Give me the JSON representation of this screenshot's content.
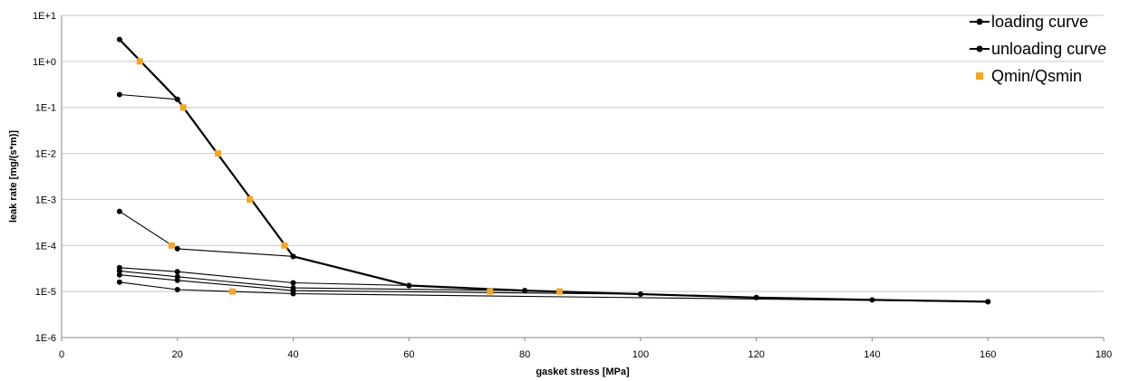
{
  "chart_data": {
    "type": "scatter",
    "title": "",
    "xlabel": "gasket stress [MPa]",
    "ylabel": "leak rate [mg/(s*m)]",
    "xlim": [
      0,
      180
    ],
    "xticks": [
      0,
      20,
      40,
      60,
      80,
      100,
      120,
      140,
      160,
      180
    ],
    "ylim": [
      1e-06,
      10
    ],
    "yscale": "log",
    "ytick_values": [
      1e-06,
      1e-05,
      0.0001,
      0.001,
      0.01,
      0.1,
      1,
      10
    ],
    "ytick_labels": [
      "1E-6",
      "1E-5",
      "1E-4",
      "1E-3",
      "1E-2",
      "1E-1",
      "1E+0",
      "1E+1"
    ],
    "grid": "horizontal",
    "legend_position": "top-right",
    "colors": {
      "line": "#000000",
      "marker_q": "#f5a623",
      "grid": "#c8c8c8",
      "axis": "#888888"
    },
    "series": [
      {
        "name": "loading curve",
        "role": "loading",
        "marker": "circle",
        "points": [
          [
            10,
            3.0
          ],
          [
            20,
            0.15
          ],
          [
            40,
            5.8e-05
          ],
          [
            60,
            1.35e-05
          ],
          [
            80,
            1.05e-05
          ],
          [
            100,
            8.8e-06
          ],
          [
            120,
            7.4e-06
          ],
          [
            140,
            6.6e-06
          ],
          [
            160,
            6e-06
          ]
        ]
      },
      {
        "name": "unloading curve",
        "role": "unloading",
        "marker": "circle",
        "points": [
          [
            20,
            0.15
          ],
          [
            10,
            0.19
          ]
        ]
      },
      {
        "name": "",
        "role": "unloading",
        "marker": "circle",
        "points": [
          [
            40,
            5.8e-05
          ],
          [
            20,
            8.5e-05
          ],
          [
            10,
            0.00055
          ]
        ]
      },
      {
        "name": "",
        "role": "unloading",
        "marker": "circle",
        "points": [
          [
            60,
            1.35e-05
          ],
          [
            40,
            1.55e-05
          ],
          [
            20,
            2.7e-05
          ],
          [
            10,
            3.3e-05
          ]
        ]
      },
      {
        "name": "",
        "role": "unloading",
        "marker": "circle",
        "points": [
          [
            80,
            1.05e-05
          ],
          [
            40,
            1.2e-05
          ],
          [
            20,
            2.1e-05
          ],
          [
            10,
            2.8e-05
          ]
        ]
      },
      {
        "name": "",
        "role": "unloading",
        "marker": "circle",
        "points": [
          [
            100,
            8.8e-06
          ],
          [
            40,
            1.05e-05
          ],
          [
            20,
            1.75e-05
          ],
          [
            10,
            2.3e-05
          ]
        ]
      },
      {
        "name": "",
        "role": "unloading",
        "marker": "circle",
        "points": [
          [
            160,
            6e-06
          ],
          [
            40,
            9e-06
          ],
          [
            20,
            1.1e-05
          ],
          [
            10,
            1.6e-05
          ]
        ]
      },
      {
        "name": "Qmin/Qsmin",
        "role": "qmin",
        "marker": "square",
        "points": [
          [
            13.5,
            1.0
          ],
          [
            21,
            0.1
          ],
          [
            27,
            0.01
          ],
          [
            32.5,
            0.001
          ],
          [
            38.5,
            0.0001
          ],
          [
            19,
            0.0001
          ],
          [
            29.5,
            1e-05
          ],
          [
            74,
            1e-05
          ],
          [
            86,
            1e-05
          ]
        ]
      }
    ]
  }
}
